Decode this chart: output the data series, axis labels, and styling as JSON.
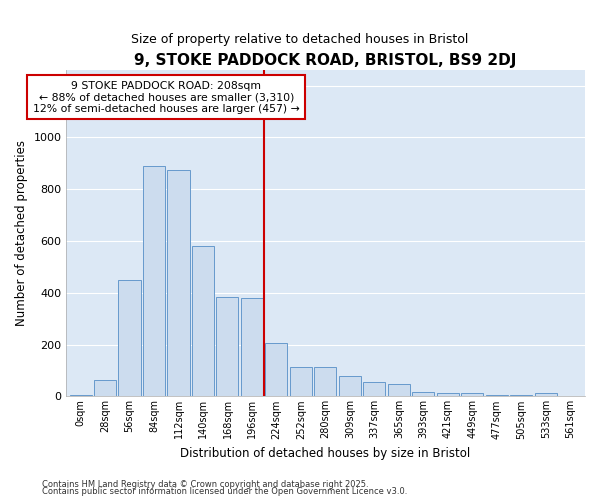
{
  "title": "9, STOKE PADDOCK ROAD, BRISTOL, BS9 2DJ",
  "subtitle": "Size of property relative to detached houses in Bristol",
  "xlabel": "Distribution of detached houses by size in Bristol",
  "ylabel": "Number of detached properties",
  "categories": [
    "0sqm",
    "28sqm",
    "56sqm",
    "84sqm",
    "112sqm",
    "140sqm",
    "168sqm",
    "196sqm",
    "224sqm",
    "252sqm",
    "280sqm",
    "309sqm",
    "337sqm",
    "365sqm",
    "393sqm",
    "421sqm",
    "449sqm",
    "477sqm",
    "505sqm",
    "533sqm",
    "561sqm"
  ],
  "values": [
    5,
    65,
    450,
    890,
    875,
    580,
    385,
    380,
    205,
    112,
    112,
    80,
    55,
    48,
    18,
    15,
    12,
    5,
    5,
    15,
    2
  ],
  "bar_color": "#ccdcee",
  "bar_edge_color": "#6699cc",
  "vline_x": 7.5,
  "vline_color": "#cc0000",
  "annotation_text": "9 STOKE PADDOCK ROAD: 208sqm\n← 88% of detached houses are smaller (3,310)\n12% of semi-detached houses are larger (457) →",
  "annotation_box_color": "#ffffff",
  "annotation_box_edge": "#cc0000",
  "plot_bg_color": "#dce8f5",
  "fig_bg_color": "#ffffff",
  "grid_color": "#ffffff",
  "ylim": [
    0,
    1260
  ],
  "yticks": [
    0,
    200,
    400,
    600,
    800,
    1000,
    1200
  ],
  "footer_line1": "Contains HM Land Registry data © Crown copyright and database right 2025.",
  "footer_line2": "Contains public sector information licensed under the Open Government Licence v3.0."
}
